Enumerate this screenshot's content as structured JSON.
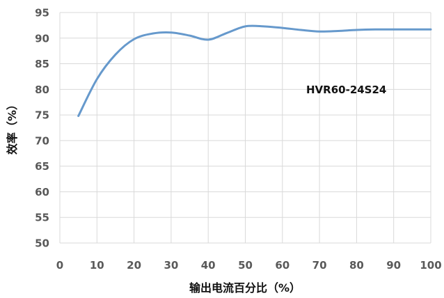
{
  "chart_data": {
    "type": "line",
    "xlabel": "输出电流百分比（%）",
    "ylabel": "效率（%）",
    "xlim": [
      0,
      100
    ],
    "ylim": [
      50,
      95
    ],
    "x_ticks": [
      0,
      10,
      20,
      30,
      40,
      50,
      60,
      70,
      80,
      90,
      100
    ],
    "y_ticks": [
      50,
      55,
      60,
      65,
      70,
      75,
      80,
      85,
      90,
      95
    ],
    "grid": true,
    "annotation": "HVR60-24S24",
    "series": [
      {
        "color": "#6699cc",
        "x": [
          5,
          10,
          15,
          20,
          25,
          30,
          35,
          40,
          45,
          50,
          55,
          60,
          65,
          70,
          75,
          80,
          85,
          90,
          95,
          100
        ],
        "y": [
          74.8,
          82.0,
          86.8,
          89.8,
          90.9,
          91.1,
          90.5,
          89.7,
          91.0,
          92.3,
          92.3,
          92.0,
          91.6,
          91.3,
          91.4,
          91.6,
          91.7,
          91.7,
          91.7,
          91.7
        ]
      }
    ]
  }
}
